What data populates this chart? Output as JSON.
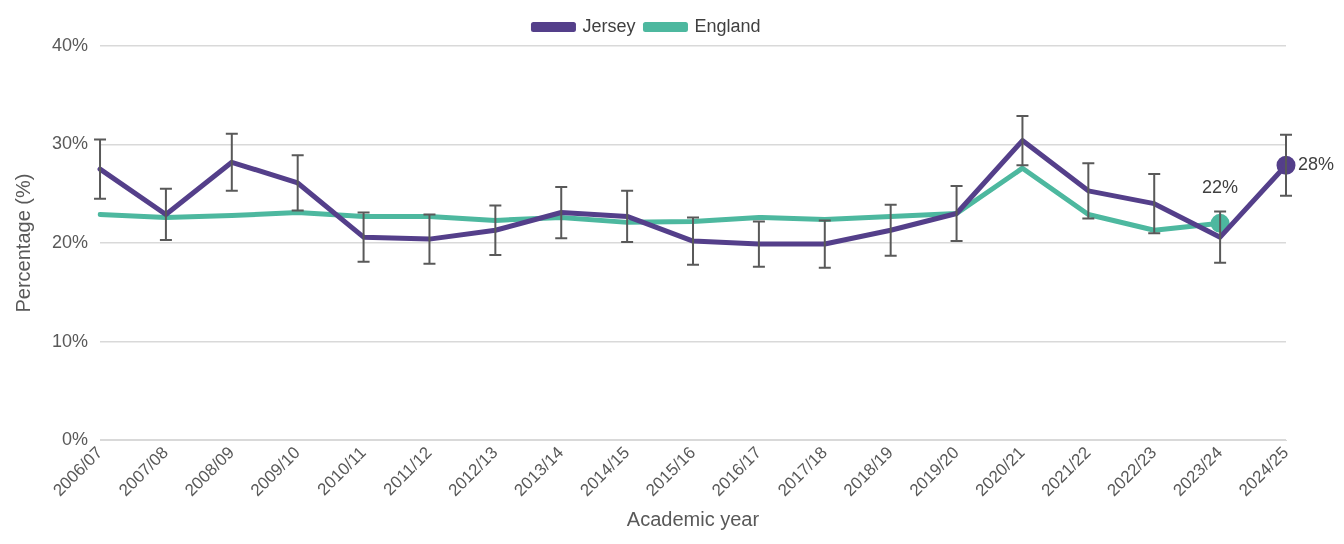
{
  "chart_data": {
    "type": "line",
    "xlabel": "Academic year",
    "ylabel": "Percentage (%)",
    "categories": [
      "2006/07",
      "2007/08",
      "2008/09",
      "2009/10",
      "2010/11",
      "2011/12",
      "2012/13",
      "2013/14",
      "2014/15",
      "2015/16",
      "2016/17",
      "2017/18",
      "2018/19",
      "2019/20",
      "2020/21",
      "2021/22",
      "2022/23",
      "2023/24",
      "2024/25"
    ],
    "series": [
      {
        "name": "Jersey",
        "color": "#543f8a",
        "values": [
          27.5,
          22.9,
          28.2,
          26.1,
          20.6,
          20.4,
          21.3,
          23.1,
          22.7,
          20.2,
          19.9,
          19.9,
          21.3,
          23.0,
          30.4,
          25.3,
          24.0,
          20.6,
          27.9
        ],
        "errors": [
          3.0,
          2.6,
          2.9,
          2.8,
          2.5,
          2.5,
          2.5,
          2.6,
          2.6,
          2.4,
          2.3,
          2.4,
          2.6,
          2.8,
          2.5,
          2.8,
          3.0,
          2.6,
          3.1
        ],
        "value_labels": [
          null,
          null,
          null,
          null,
          null,
          null,
          null,
          null,
          null,
          null,
          null,
          null,
          null,
          null,
          null,
          null,
          null,
          null,
          "28%"
        ]
      },
      {
        "name": "England",
        "color": "#4db89f",
        "values": [
          22.9,
          22.6,
          22.8,
          23.1,
          22.7,
          22.7,
          22.3,
          22.6,
          22.1,
          22.2,
          22.6,
          22.4,
          22.7,
          23.0,
          27.6,
          22.9,
          21.3,
          22.0,
          null
        ],
        "value_labels": [
          null,
          null,
          null,
          null,
          null,
          null,
          null,
          null,
          null,
          null,
          null,
          null,
          null,
          null,
          null,
          null,
          null,
          "22%",
          null
        ]
      }
    ],
    "ylim": [
      0,
      40
    ],
    "yticks": [
      {
        "value": 0,
        "label": "0%"
      },
      {
        "value": 10,
        "label": "10%"
      },
      {
        "value": 20,
        "label": "20%"
      },
      {
        "value": 30,
        "label": "30%"
      },
      {
        "value": 40,
        "label": "40%"
      }
    ],
    "grid": "y",
    "legend": "top"
  }
}
